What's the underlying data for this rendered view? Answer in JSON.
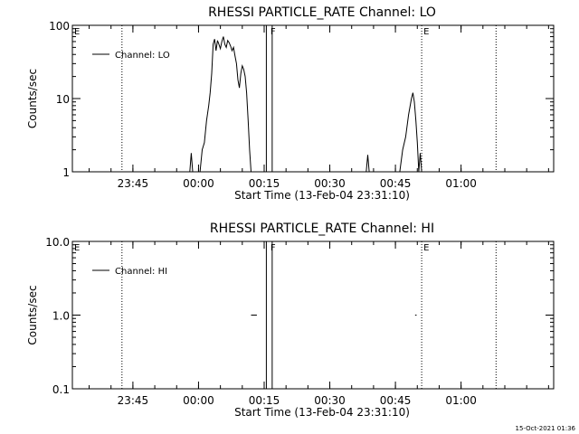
{
  "footer": {
    "timestamp": "15-Oct-2021 01:36"
  },
  "chart_data": [
    {
      "type": "line",
      "title": "RHESSI PARTICLE_RATE Channel: LO",
      "xlabel": "Start Time (13-Feb-04 23:31:10)",
      "ylabel": "Counts/sec",
      "yscale": "log",
      "ylim": [
        1,
        100
      ],
      "xlim_minutes_after_start": [
        0,
        110
      ],
      "xticks": [
        "23:45",
        "00:00",
        "00:15",
        "00:30",
        "00:45",
        "01:00"
      ],
      "yticks": [
        "1",
        "10",
        "100"
      ],
      "legend": {
        "position": "top-left",
        "entries": [
          "Channel: LO"
        ]
      },
      "event_markers": [
        {
          "label": "E",
          "time": "23:31:10"
        },
        {
          "label": "F",
          "time": "00:16"
        },
        {
          "label": "E",
          "time": "00:51"
        }
      ],
      "dotted_lines": [
        "23:42:30",
        "00:51",
        "01:08"
      ],
      "gap_box": [
        "00:15:30",
        "00:16:50"
      ],
      "series": [
        {
          "name": "Channel: LO",
          "x": [
            "23:58:00",
            "23:58:20",
            "23:58:40",
            "23:59:00",
            "23:59:40",
            "00:00:20",
            "00:00:50",
            "00:01:20",
            "00:01:50",
            "00:02:20",
            "00:02:40",
            "00:03:00",
            "00:03:20",
            "00:03:40",
            "00:04:00",
            "00:04:20",
            "00:04:40",
            "00:05:00",
            "00:05:20",
            "00:05:40",
            "00:06:00",
            "00:06:20",
            "00:06:40",
            "00:07:00",
            "00:07:20",
            "00:07:40",
            "00:08:00",
            "00:08:20",
            "00:08:40",
            "00:09:00",
            "00:09:20",
            "00:09:40",
            "00:10:00",
            "00:10:20",
            "00:10:40",
            "00:11:00",
            "00:11:20",
            "00:11:40",
            "00:12:00",
            "00:12:20",
            "00:12:40",
            "00:13:00",
            "00:13:20",
            "00:13:40",
            "00:14:00",
            "00:14:20",
            "00:38:20",
            "00:38:40",
            "00:39:00",
            "00:46:00",
            "00:46:40",
            "00:47:20",
            "00:48:00",
            "00:48:40",
            "00:49:00",
            "00:49:20",
            "00:49:40",
            "00:50:00",
            "00:50:20",
            "00:50:40",
            "00:51:00",
            "00:51:20",
            "00:51:40",
            "00:52:00"
          ],
          "y": [
            1,
            1.8,
            1,
            1,
            1,
            1,
            2,
            2.5,
            5,
            8,
            12,
            22,
            55,
            65,
            45,
            62,
            55,
            48,
            60,
            70,
            55,
            50,
            62,
            58,
            52,
            45,
            50,
            38,
            30,
            18,
            14,
            22,
            28,
            25,
            20,
            12,
            5,
            2,
            1,
            1,
            1,
            1,
            1,
            1,
            1,
            1,
            1,
            1.7,
            1,
            1,
            2,
            3,
            6,
            10,
            12,
            9,
            5,
            2.5,
            1,
            1.8,
            1,
            1,
            1,
            1
          ]
        }
      ]
    },
    {
      "type": "line",
      "title": "RHESSI PARTICLE_RATE Channel: HI",
      "xlabel": "Start Time (13-Feb-04 23:31:10)",
      "ylabel": "Counts/sec",
      "yscale": "log",
      "ylim": [
        0.1,
        10
      ],
      "xlim_minutes_after_start": [
        0,
        110
      ],
      "xticks": [
        "23:45",
        "00:00",
        "00:15",
        "00:30",
        "00:45",
        "01:00"
      ],
      "yticks": [
        "0.1",
        "1.0",
        "10.0"
      ],
      "legend": {
        "position": "top-left",
        "entries": [
          "Channel: HI"
        ]
      },
      "event_markers": [
        {
          "label": "E",
          "time": "23:31:10"
        },
        {
          "label": "F",
          "time": "00:16"
        },
        {
          "label": "E",
          "time": "00:51"
        }
      ],
      "dotted_lines": [
        "23:42:30",
        "00:51",
        "01:08"
      ],
      "gap_box": [
        "00:15:30",
        "00:16:50"
      ],
      "series": [
        {
          "name": "Channel: HI",
          "segments": [
            {
              "x": [
                "00:12:00",
                "00:13:20"
              ],
              "y": [
                1.0,
                1.0
              ]
            },
            {
              "x": [
                "00:49:30",
                "00:49:50"
              ],
              "y": [
                1.0,
                1.0
              ]
            }
          ]
        }
      ]
    }
  ]
}
